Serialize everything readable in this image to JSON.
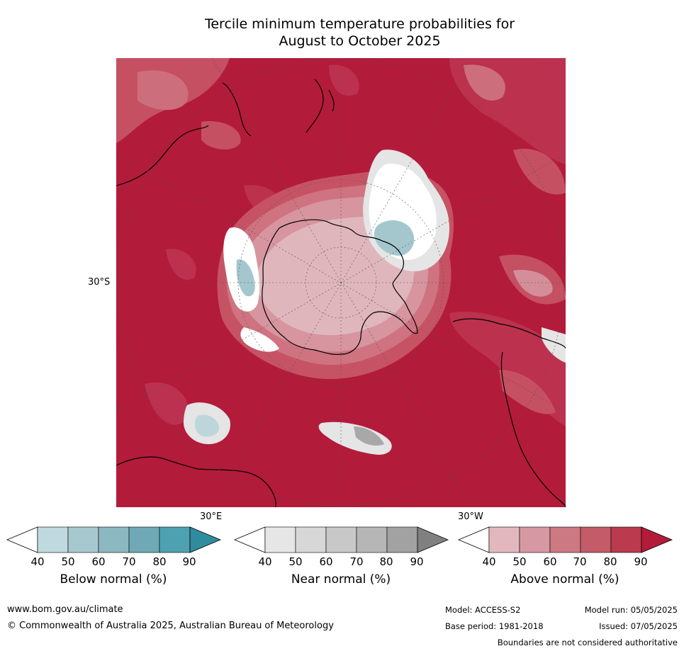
{
  "title_line1": "Tercile minimum temperature probabilities for",
  "title_line2": "August to October 2025",
  "map": {
    "latitude_label": "30°S",
    "lon_label_east": "30°E",
    "lon_label_west": "30°W",
    "colors": {
      "above_90": "#b31b3a",
      "above_80": "#bd3350",
      "above_70": "#c65364",
      "above_60": "#cf7381",
      "above_50": "#d6959f",
      "above_40": "#e0b6bd",
      "near_40": "#e5e5e5",
      "near_60": "#c8c8c8",
      "near_80": "#a8a8a8",
      "below_40": "#bdd6dc",
      "below_50": "#a4c7ce",
      "white": "#ffffff"
    }
  },
  "colorbars": [
    {
      "label": "Below normal (%)",
      "ticks": [
        "40",
        "50",
        "60",
        "70",
        "80",
        "90"
      ],
      "colors": [
        "#c0d9df",
        "#a8c8cf",
        "#8cb8c2",
        "#6fa9b6",
        "#4ea1b0",
        "#2f8b9e"
      ]
    },
    {
      "label": "Near normal (%)",
      "ticks": [
        "40",
        "50",
        "60",
        "70",
        "80",
        "90"
      ],
      "colors": [
        "#e6e6e6",
        "#d7d7d7",
        "#c8c8c8",
        "#b6b6b6",
        "#a2a2a2",
        "#808080"
      ]
    },
    {
      "label": "Above normal (%)",
      "ticks": [
        "40",
        "50",
        "60",
        "70",
        "80",
        "90"
      ],
      "colors": [
        "#e2b8be",
        "#d698a2",
        "#cc7984",
        "#c35b68",
        "#bb3a4d",
        "#b31b3a"
      ]
    }
  ],
  "footer": {
    "website": "www.bom.gov.au/climate",
    "copyright": "© Commonwealth of Australia 2025, Australian Bureau of Meteorology",
    "model": "Model: ACCESS-S2",
    "base_period": "Base period: 1981-2018",
    "model_run": "Model run: 05/05/2025",
    "issued": "Issued: 07/05/2025",
    "disclaimer": "Boundaries are not considered authoritative"
  }
}
